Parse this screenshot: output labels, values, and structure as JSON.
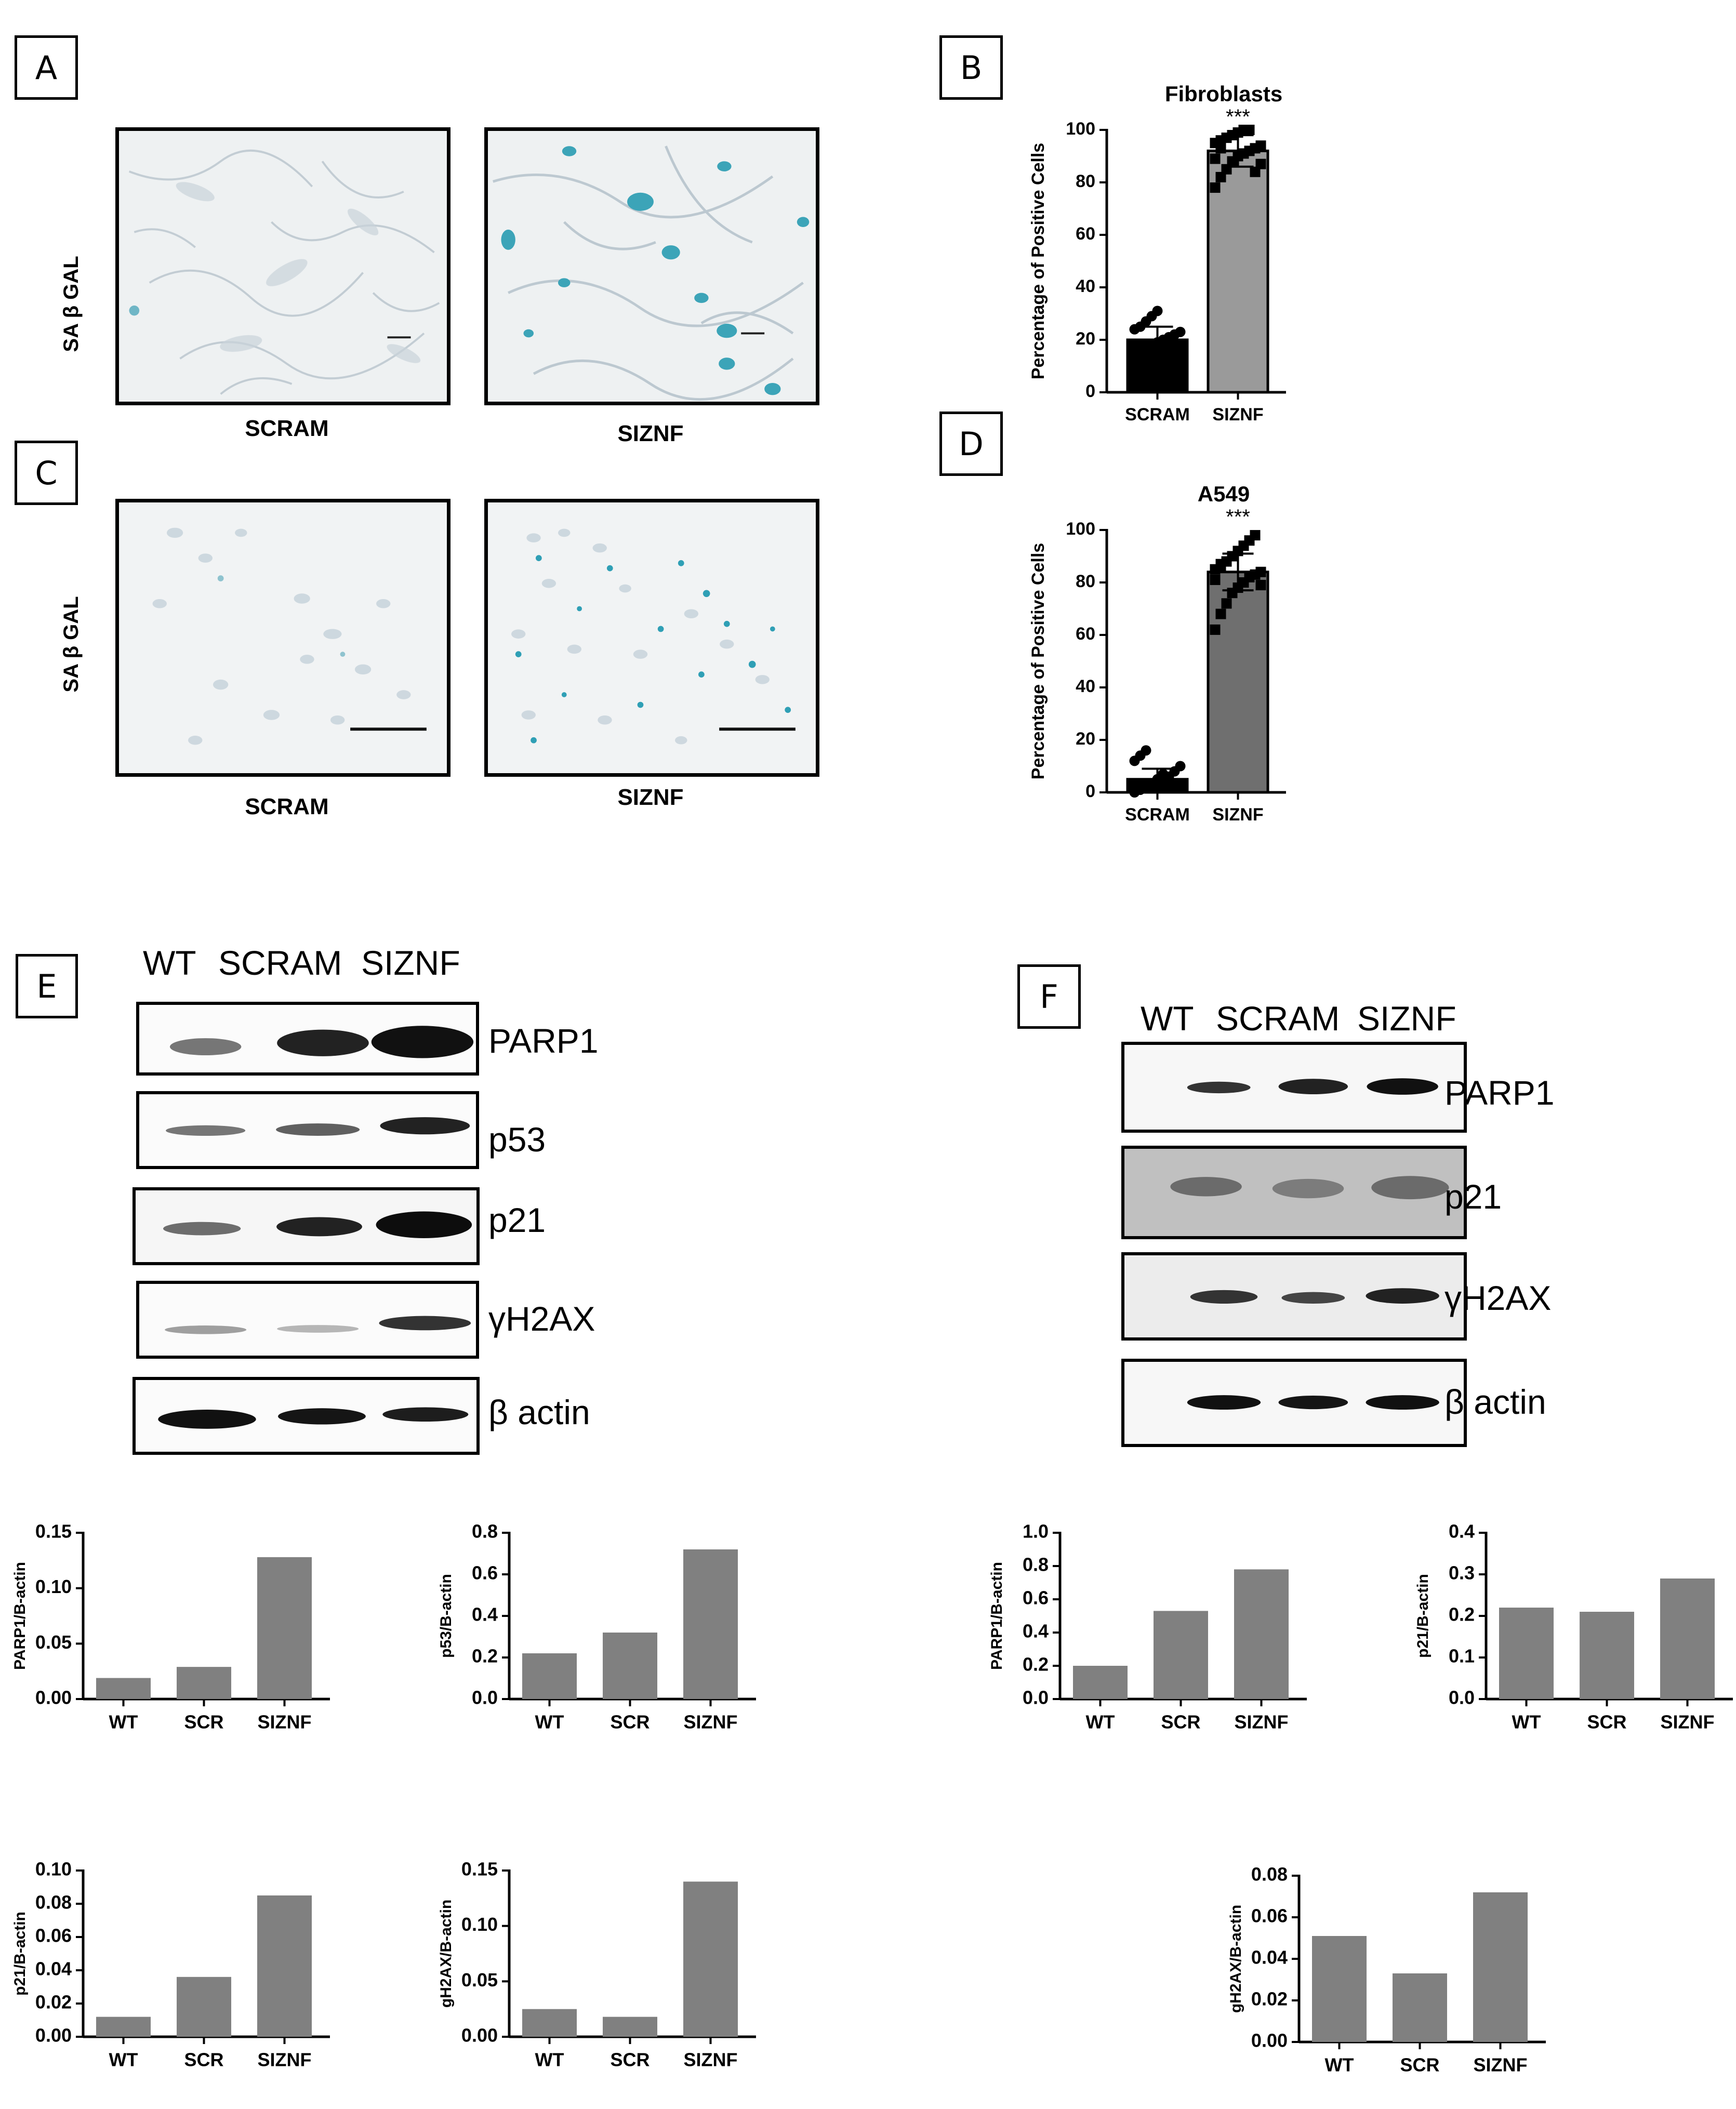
{
  "panels": {
    "A": {
      "letter": "A",
      "row_label": "SA β GAL",
      "conditions": [
        "SCRAM",
        "SIZNF"
      ]
    },
    "B": {
      "letter": "B"
    },
    "C": {
      "letter": "C",
      "row_label": "SA β GAL",
      "conditions": [
        "SCRAM",
        "SIZNF"
      ]
    },
    "D": {
      "letter": "D"
    },
    "E": {
      "letter": "E",
      "lanes": [
        "WT",
        "SCRAM",
        "SIZNF"
      ],
      "bands": [
        "PARP1",
        "p53",
        "p21",
        "γH2AX",
        "β actin"
      ]
    },
    "F": {
      "letter": "F",
      "lanes": [
        "WT",
        "SCRAM",
        "SIZNF"
      ],
      "bands": [
        "PARP1",
        "p21",
        "γH2AX",
        "β actin"
      ]
    }
  },
  "chart_data": [
    {
      "id": "B",
      "type": "bar",
      "title": "Fibroblasts",
      "ylabel": "Percentage of Positive Cells",
      "categories": [
        "SCRAM",
        "SIZNF"
      ],
      "values": [
        20,
        92
      ],
      "ylim": [
        0,
        100
      ],
      "yticks": [
        "0",
        "20",
        "40",
        "60",
        "80",
        "100"
      ],
      "colors": [
        "#000000",
        "#9a9a9a"
      ],
      "annotation": "***",
      "points": [
        [
          13,
          15,
          17,
          18,
          19,
          20,
          21,
          22,
          23,
          24,
          25,
          27,
          29,
          31,
          17,
          20,
          22,
          18
        ],
        [
          78,
          82,
          85,
          88,
          90,
          91,
          92,
          93,
          94,
          95,
          96,
          97,
          98,
          99,
          100,
          100,
          84,
          87,
          89,
          93
        ]
      ]
    },
    {
      "id": "D",
      "type": "bar",
      "title": "A549",
      "ylabel": "Percentage of Positive Cells",
      "categories": [
        "SCRAM",
        "SIZNF"
      ],
      "values": [
        5,
        84
      ],
      "ylim": [
        0,
        100
      ],
      "yticks": [
        "0",
        "20",
        "40",
        "60",
        "80",
        "100"
      ],
      "colors": [
        "#000000",
        "#6f6f6f"
      ],
      "annotation": "***",
      "points": [
        [
          0,
          1,
          2,
          3,
          4,
          5,
          6,
          8,
          10,
          12,
          14,
          16,
          3,
          5,
          7
        ],
        [
          62,
          68,
          72,
          76,
          78,
          80,
          82,
          83,
          84,
          85,
          86,
          88,
          90,
          92,
          94,
          96,
          98,
          79,
          81,
          87
        ]
      ]
    },
    {
      "id": "E1",
      "type": "bar",
      "ylabel": "PARP1/B-actin",
      "categories": [
        "WT",
        "SCR",
        "SIZNF"
      ],
      "values": [
        0.019,
        0.029,
        0.128
      ],
      "ylim": [
        0,
        0.15
      ],
      "yticks": [
        "0.00",
        "0.05",
        "0.10",
        "0.15"
      ]
    },
    {
      "id": "E2",
      "type": "bar",
      "ylabel": "p53/B-actin",
      "categories": [
        "WT",
        "SCR",
        "SIZNF"
      ],
      "values": [
        0.22,
        0.32,
        0.72
      ],
      "ylim": [
        0,
        0.8
      ],
      "yticks": [
        "0.0",
        "0.2",
        "0.4",
        "0.6",
        "0.8"
      ]
    },
    {
      "id": "E3",
      "type": "bar",
      "ylabel": "p21/B-actin",
      "categories": [
        "WT",
        "SCR",
        "SIZNF"
      ],
      "values": [
        0.012,
        0.036,
        0.085
      ],
      "ylim": [
        0,
        0.1
      ],
      "yticks": [
        "0.00",
        "0.02",
        "0.04",
        "0.06",
        "0.08",
        "0.10"
      ]
    },
    {
      "id": "E4",
      "type": "bar",
      "ylabel": "gH2AX/B-actin",
      "categories": [
        "WT",
        "SCR",
        "SIZNF"
      ],
      "values": [
        0.025,
        0.018,
        0.14
      ],
      "ylim": [
        0,
        0.15
      ],
      "yticks": [
        "0.00",
        "0.05",
        "0.10",
        "0.15"
      ]
    },
    {
      "id": "F1",
      "type": "bar",
      "ylabel": "PARP1/B-actin",
      "categories": [
        "WT",
        "SCR",
        "SIZNF"
      ],
      "values": [
        0.2,
        0.53,
        0.78
      ],
      "ylim": [
        0,
        1.0
      ],
      "yticks": [
        "0.0",
        "0.2",
        "0.4",
        "0.6",
        "0.8",
        "1.0"
      ]
    },
    {
      "id": "F2",
      "type": "bar",
      "ylabel": "p21/B-actin",
      "categories": [
        "WT",
        "SCR",
        "SIZNF"
      ],
      "values": [
        0.22,
        0.21,
        0.29
      ],
      "ylim": [
        0,
        0.4
      ],
      "yticks": [
        "0.0",
        "0.1",
        "0.2",
        "0.3",
        "0.4"
      ]
    },
    {
      "id": "F3",
      "type": "bar",
      "ylabel": "gH2AX/B-actin",
      "categories": [
        "WT",
        "SCR",
        "SIZNF"
      ],
      "values": [
        0.051,
        0.033,
        0.072
      ],
      "ylim": [
        0,
        0.08
      ],
      "yticks": [
        "0.00",
        "0.02",
        "0.04",
        "0.06",
        "0.08"
      ]
    }
  ]
}
